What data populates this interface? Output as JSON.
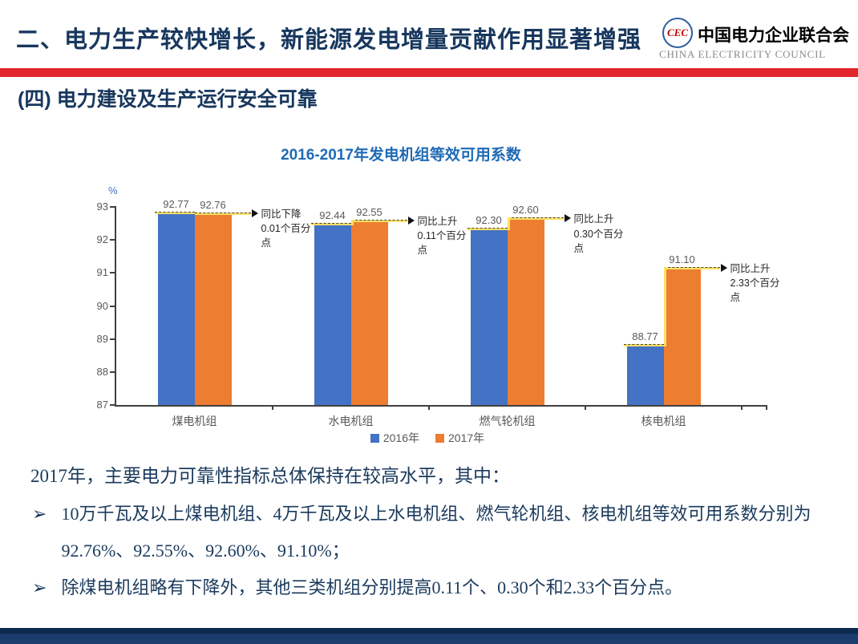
{
  "header": {
    "title": "二、电力生产较快增长，新能源发电增量贡献作用显著增强",
    "logo": {
      "monogram": "CEC",
      "org_cn": "中国电力企业联合会",
      "org_en": "CHINA ELECTRICITY COUNCIL"
    }
  },
  "section": {
    "title": "(四)  电力建设及生产运行安全可靠"
  },
  "chart_data": {
    "type": "bar",
    "title": "2016-2017年发电机组等效可用系数",
    "unit_label": "%",
    "categories": [
      "煤电机组",
      "水电机组",
      "燃气轮机组",
      "核电机组"
    ],
    "series": [
      {
        "name": "2016年",
        "color": "#4472C4",
        "values": [
          92.77,
          92.44,
          92.3,
          88.77
        ]
      },
      {
        "name": "2017年",
        "color": "#ED7D31",
        "values": [
          92.76,
          92.55,
          92.6,
          91.1
        ]
      }
    ],
    "annotations": [
      "同比下降0.01个百分点",
      "同比上升0.11个百分点",
      "同比上升0.30个百分点",
      "同比上升2.33个百分点"
    ],
    "ylim": [
      87,
      93
    ],
    "ytick_step": 1,
    "grid": false,
    "legend_position": "bottom"
  },
  "body": {
    "intro": "2017年，主要电力可靠性指标总体保持在较高水平，其中：",
    "bullet_marker": "➢",
    "bullets": [
      "10万千瓦及以上煤电机组、4万千瓦及以上水电机组、燃气轮机组、核电机组等效可用系数分别为92.76%、92.55%、92.60%、91.10%；",
      "除煤电机组略有下降外，其他三类机组分别提高0.11个、0.30个和2.33个百分点。"
    ]
  },
  "colors": {
    "header_navy": "#17375E",
    "accent_red": "#E2262C",
    "chart_title_blue": "#1F6BB5",
    "bar_blue": "#4472C4",
    "bar_orange": "#ED7D31",
    "arrow_yellow": "#FFE066",
    "axis_gray": "#595959",
    "footer_navy": "#0D2A4E"
  }
}
